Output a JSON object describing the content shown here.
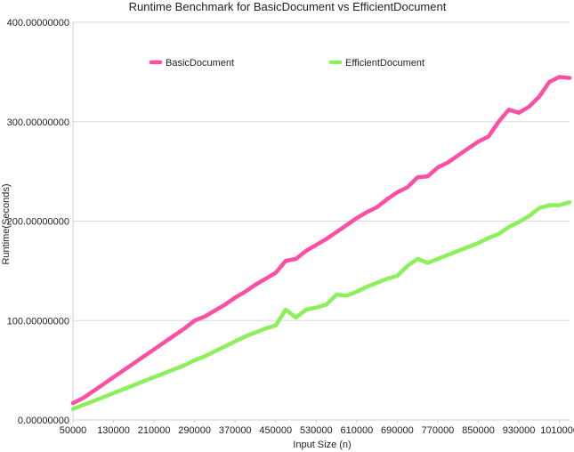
{
  "chart_data": {
    "type": "line",
    "title": "Runtime Benchmark for BasicDocument vs EfficientDocument",
    "xlabel": "Input Size (n)",
    "ylabel": "Runtime(Seconds)",
    "xlim": [
      50000,
      1030000
    ],
    "ylim": [
      0,
      400
    ],
    "grid": "horizontal",
    "legend_position": "top",
    "x_ticks": [
      {
        "value": 50000,
        "label": "50000"
      },
      {
        "value": 130000,
        "label": "130000"
      },
      {
        "value": 210000,
        "label": "210000"
      },
      {
        "value": 290000,
        "label": "290000"
      },
      {
        "value": 370000,
        "label": "370000"
      },
      {
        "value": 450000,
        "label": "450000"
      },
      {
        "value": 530000,
        "label": "530000"
      },
      {
        "value": 610000,
        "label": "610000"
      },
      {
        "value": 690000,
        "label": "690000"
      },
      {
        "value": 770000,
        "label": "770000"
      },
      {
        "value": 850000,
        "label": "850000"
      },
      {
        "value": 930000,
        "label": "930000"
      },
      {
        "value": 1010000,
        "label": "1010000"
      }
    ],
    "y_ticks": [
      {
        "value": 0,
        "label": "0.00000000"
      },
      {
        "value": 100,
        "label": "100.00000000"
      },
      {
        "value": 200,
        "label": "200.00000000"
      },
      {
        "value": 300,
        "label": "300.00000000"
      },
      {
        "value": 400,
        "label": "400.00000000"
      }
    ],
    "x": [
      50000,
      70000,
      90000,
      110000,
      130000,
      150000,
      170000,
      190000,
      210000,
      230000,
      250000,
      270000,
      290000,
      310000,
      330000,
      350000,
      370000,
      390000,
      410000,
      430000,
      450000,
      470000,
      490000,
      510000,
      530000,
      550000,
      570000,
      590000,
      610000,
      630000,
      650000,
      670000,
      690000,
      710000,
      730000,
      750000,
      770000,
      790000,
      810000,
      830000,
      850000,
      870000,
      890000,
      910000,
      930000,
      950000,
      970000,
      990000,
      1010000,
      1030000
    ],
    "series": [
      {
        "name": "BasicDocument",
        "color": "#ff4fa3",
        "values": [
          17,
          22,
          29,
          36,
          43,
          50,
          57,
          64,
          71,
          78,
          85,
          92,
          100,
          104,
          110,
          116,
          123,
          129,
          136,
          142,
          148,
          160,
          162,
          170,
          176,
          182,
          189,
          196,
          203,
          209,
          214,
          222,
          229,
          234,
          244,
          245,
          254,
          259,
          266,
          273,
          280,
          285,
          300,
          312,
          309,
          315,
          325,
          340,
          345,
          344
        ]
      },
      {
        "name": "EfficientDocument",
        "color": "#8cf05a",
        "values": [
          11,
          15,
          19,
          23,
          27,
          31,
          35,
          39,
          43,
          47,
          51,
          55,
          60,
          64,
          69,
          74,
          79,
          84,
          88,
          92,
          95,
          111,
          103,
          111,
          113,
          116,
          126,
          125,
          129,
          134,
          138,
          142,
          145,
          155,
          162,
          158,
          162,
          166,
          170,
          174,
          178,
          183,
          187,
          194,
          199,
          205,
          213,
          216,
          216,
          219
        ]
      }
    ]
  }
}
